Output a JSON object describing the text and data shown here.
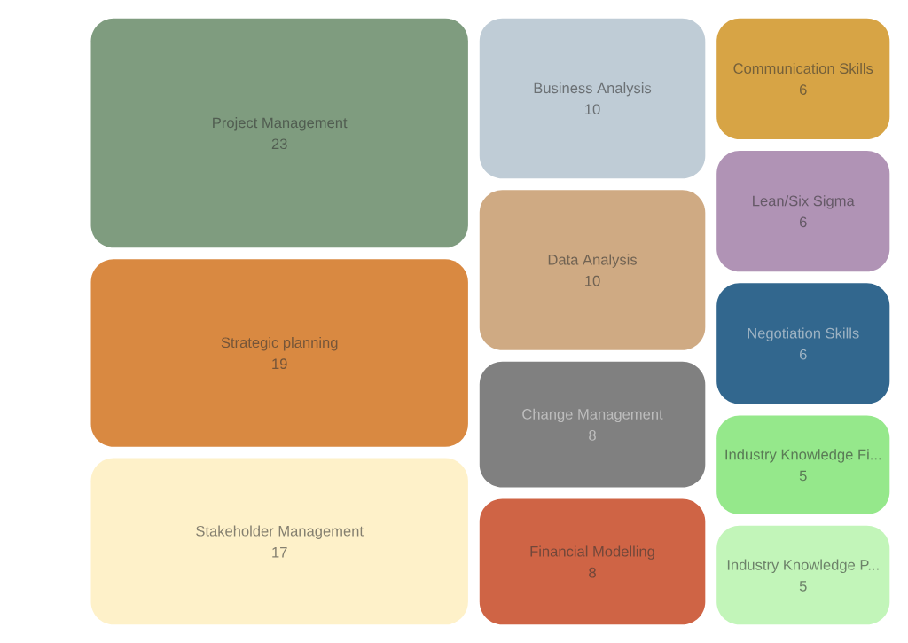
{
  "chart_data": {
    "type": "other",
    "categories": [
      "Project Management",
      "Strategic planning",
      "Stakeholder Management",
      "Business Analysis",
      "Data Analysis",
      "Change Management",
      "Financial Modelling",
      "Communication Skills",
      "Lean/Six Sigma",
      "Negotiation Skills",
      "Industry Knowledge Fi...",
      "Industry Knowledge P..."
    ],
    "values": [
      23,
      19,
      17,
      10,
      10,
      8,
      8,
      6,
      6,
      6,
      5,
      5
    ],
    "colors": [
      "#7f9c7f",
      "#d98941",
      "#fef1c9",
      "#bfccd6",
      "#cfaa83",
      "#808080",
      "#cf6445",
      "#d7a445",
      "#b093b5",
      "#32678e",
      "#95e88b",
      "#c2f5b9"
    ],
    "data_labels": true
  }
}
